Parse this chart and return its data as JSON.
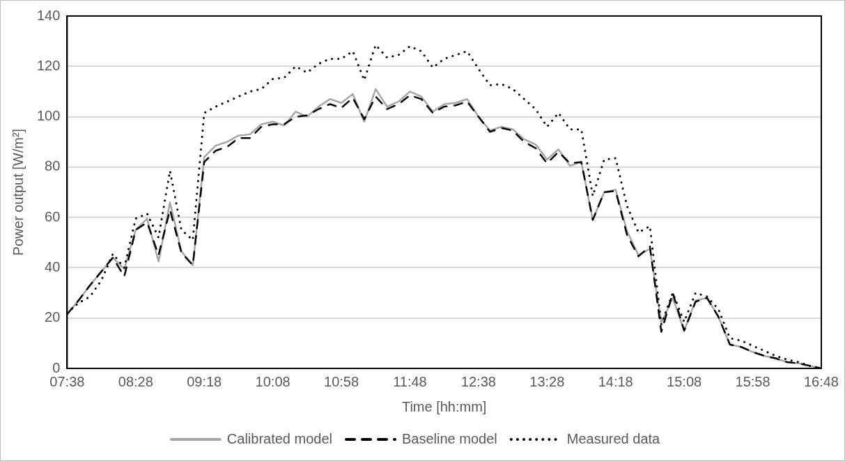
{
  "chart_data": {
    "type": "line",
    "xlabel": "Time [hh:mm]",
    "ylabel": "Power output [W/m²]",
    "categories": [
      "07:38",
      null,
      null,
      null,
      null,
      null,
      "08:28",
      null,
      null,
      null,
      null,
      null,
      "09:18",
      null,
      null,
      null,
      null,
      null,
      "10:08",
      null,
      null,
      null,
      null,
      null,
      "10:58",
      null,
      null,
      null,
      null,
      null,
      "11:48",
      null,
      null,
      null,
      null,
      null,
      "12:38",
      null,
      null,
      null,
      null,
      null,
      "13:28",
      null,
      null,
      null,
      null,
      null,
      "14:18",
      null,
      null,
      null,
      null,
      null,
      "15:08",
      null,
      null,
      null,
      null,
      null,
      "15:58",
      null,
      null,
      null,
      null,
      null,
      "16:48"
    ],
    "series": [
      {
        "name": "Calibrated model",
        "color": "#a6a6a6",
        "line_style": "solid",
        "values": [
          21.5,
          27,
          33,
          38.5,
          44,
          39.5,
          55,
          59.5,
          42.5,
          66,
          46.5,
          41,
          84,
          88.5,
          90,
          92.5,
          93,
          97,
          98,
          96.5,
          102,
          100,
          104,
          107,
          105.5,
          109,
          98,
          111,
          104,
          106,
          110,
          108,
          102,
          105,
          105.5,
          107,
          100,
          94.5,
          96,
          95,
          91,
          89,
          83,
          87,
          80.5,
          82,
          59,
          70,
          71,
          54.5,
          45,
          47.5,
          18,
          28,
          15,
          27,
          28,
          20.5,
          9.5,
          8.5,
          6.5,
          5,
          4,
          2.5,
          2,
          1,
          0
        ]
      },
      {
        "name": "Baseline model",
        "color": "#000000",
        "line_style": "dashed",
        "values": [
          21.5,
          27,
          33,
          38.5,
          44,
          36.5,
          55,
          58,
          45,
          63,
          46,
          41,
          82,
          86.5,
          88,
          91.5,
          91.5,
          96,
          97,
          97,
          100,
          100.5,
          103,
          105,
          103.5,
          107.5,
          99,
          108,
          103,
          105,
          108.5,
          107,
          101.5,
          104,
          104.5,
          106,
          100,
          94,
          95.5,
          94.5,
          90,
          87.5,
          81.5,
          86,
          81.5,
          82,
          59,
          70,
          70.5,
          53,
          44.5,
          48.5,
          14.5,
          30,
          15,
          26.5,
          28,
          20.5,
          9.5,
          8.5,
          6.5,
          5,
          4,
          2.5,
          2,
          1,
          0
        ]
      },
      {
        "name": "Measured data",
        "color": "#000000",
        "line_style": "dotted",
        "values": [
          22,
          26,
          28.5,
          35,
          45.5,
          40,
          59.5,
          61.5,
          52,
          78.5,
          55,
          51,
          101.5,
          104,
          106,
          108,
          110,
          111,
          115,
          115.5,
          120,
          117.5,
          121,
          123,
          123,
          126,
          114.5,
          128.5,
          123.5,
          124.5,
          128,
          126,
          119.5,
          123,
          124.5,
          126,
          119,
          112.5,
          113,
          111,
          107,
          103,
          96,
          101.5,
          95,
          95,
          68.5,
          83,
          83.5,
          64.5,
          54,
          56.5,
          17.5,
          30,
          18.5,
          30,
          28.5,
          23.5,
          12,
          11,
          9,
          7,
          5,
          3.5,
          2.5,
          1,
          0
        ]
      }
    ],
    "ylim": [
      0,
      140
    ],
    "yticks": [
      0,
      20,
      40,
      60,
      80,
      100,
      120,
      140
    ],
    "grid": "y",
    "legend": "bottom",
    "marker": "none"
  }
}
